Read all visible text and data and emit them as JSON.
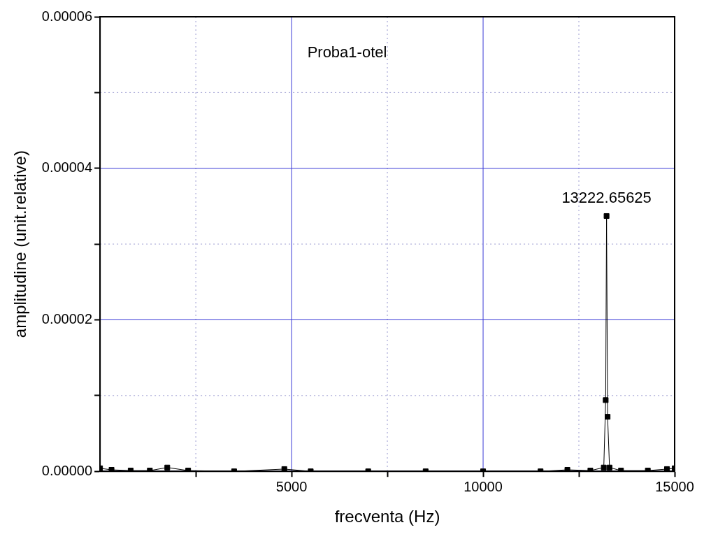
{
  "chart_data": {
    "type": "line",
    "xlabel": "frecventa (Hz)",
    "ylabel": "amplitudine (unit.relative)",
    "annotations": [
      "Proba1-otel",
      "13222.65625"
    ],
    "x": [
      0,
      300,
      800,
      1300,
      1755,
      2300,
      3500,
      4811,
      5500,
      7000,
      8500,
      10000,
      11500,
      12200,
      12800,
      13150,
      13200,
      13222.65625,
      13250,
      13300,
      13600,
      14300,
      14800,
      15000
    ],
    "series": [
      {
        "color": "#000000",
        "values": [
          4e-07,
          2e-07,
          1e-07,
          1e-07,
          5e-07,
          1e-07,
          0,
          3e-07,
          0,
          0,
          0,
          0,
          0,
          2e-07,
          1e-07,
          5e-07,
          9.4e-06,
          3.37e-05,
          7.2e-06,
          5e-07,
          1e-07,
          1e-07,
          3e-07,
          4e-07
        ]
      }
    ],
    "xlim": [
      0,
      15000
    ],
    "xticks": [
      {
        "value": 2500,
        "label": null
      },
      5000,
      {
        "value": 7500,
        "label": null
      },
      10000,
      {
        "value": 12500,
        "label": null
      },
      15000
    ],
    "ylim": [
      0,
      6e-05
    ],
    "yticks": [
      {
        "value": 0,
        "label": "0.00000"
      },
      {
        "value": 1e-05,
        "label": null
      },
      {
        "value": 2e-05,
        "label": "0.00002"
      },
      {
        "value": 3e-05,
        "label": null
      },
      {
        "value": 4e-05,
        "label": "0.00004"
      },
      {
        "value": 5e-05,
        "label": null
      },
      {
        "value": 6e-05,
        "label": "0.00006"
      }
    ],
    "grid": true,
    "legend": false,
    "marker": "square",
    "line_style": "solid"
  }
}
